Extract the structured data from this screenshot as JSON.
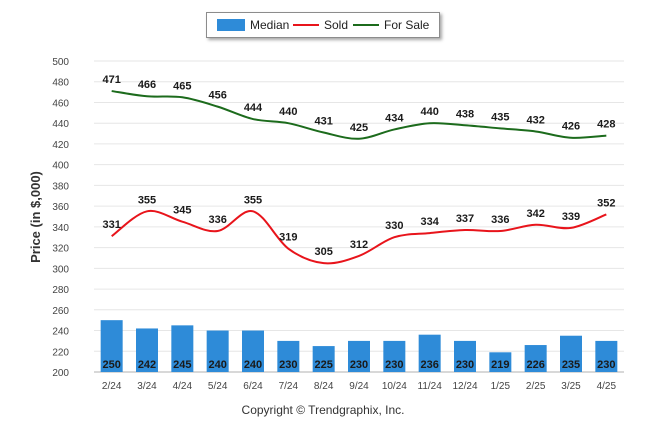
{
  "chart_data": {
    "type": "bar+line",
    "categories": [
      "2/24",
      "3/24",
      "4/24",
      "5/24",
      "6/24",
      "7/24",
      "8/24",
      "9/24",
      "10/24",
      "11/24",
      "12/24",
      "1/25",
      "2/25",
      "3/25",
      "4/25"
    ],
    "series": [
      {
        "name": "Median",
        "kind": "bar",
        "color": "#2e8bd8",
        "values": [
          250,
          242,
          245,
          240,
          240,
          230,
          225,
          230,
          230,
          236,
          230,
          219,
          226,
          235,
          230
        ]
      },
      {
        "name": "Sold",
        "kind": "line",
        "color": "#e8141b",
        "values": [
          331,
          355,
          345,
          336,
          355,
          319,
          305,
          312,
          330,
          334,
          337,
          336,
          342,
          339,
          352
        ]
      },
      {
        "name": "For Sale",
        "kind": "line",
        "color": "#1c6b1c",
        "values": [
          471,
          466,
          465,
          456,
          444,
          440,
          431,
          425,
          434,
          440,
          438,
          435,
          432,
          426,
          428
        ]
      }
    ],
    "ylabel": "Price (in $,000)",
    "ylim": [
      200,
      500
    ],
    "yticks": [
      200,
      220,
      240,
      260,
      280,
      300,
      320,
      340,
      360,
      380,
      400,
      420,
      440,
      460,
      480,
      500
    ],
    "grid": true,
    "legend_position": "top-center"
  },
  "footer": {
    "copyright": "Copyright © Trendgraphix, Inc."
  }
}
